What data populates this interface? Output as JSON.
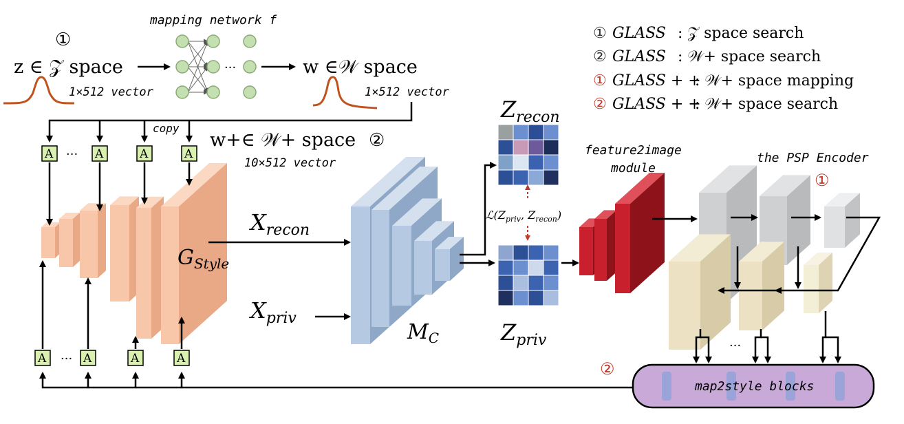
{
  "colors": {
    "generator": "#f8c6a8",
    "generator_side": "#e9a886",
    "encoder": "#b5c9e3",
    "encoder_side": "#8fa8c8",
    "red_module": "#c8202c",
    "psp_gray": "#cfd0d2",
    "psp_beige": "#ece2c3",
    "map2style": "#c9a9d8",
    "abox": "#d9f0b0",
    "gauss": "#c0521c",
    "legend_red": "#c0392b"
  },
  "top": {
    "mapping_label": "mapping network f",
    "z_badge": "①",
    "z_space": "z ∈ 𝒵 space",
    "z_vector": "1×512 vector",
    "w_space": "w ∈𝒲 space",
    "w_vector": "1×512 vector",
    "dots": "···"
  },
  "legend": [
    {
      "badge": "①",
      "method": "GLASS",
      "rest": ": 𝒵  space search",
      "red": false
    },
    {
      "badge": "②",
      "method": "GLASS",
      "rest": ": 𝒲+ space search",
      "red": false
    },
    {
      "badge": "①",
      "method": "GLASS + +",
      "rest": ": 𝒲+ space mapping",
      "red": true
    },
    {
      "badge": "②",
      "method": "GLASS + +",
      "rest": ": 𝒲+ space search",
      "red": true
    }
  ],
  "generator": {
    "copy": "copy",
    "wplus_space": "w+∈ 𝒲+ space",
    "wplus_badge": "②",
    "wplus_vector": "10×512 vector",
    "label_main": "G",
    "label_sub": "Style",
    "a_label": "A",
    "dots": "···"
  },
  "inputs": {
    "recon_main": "X",
    "recon_sub": "recon",
    "priv_main": "X",
    "priv_sub": "priv"
  },
  "classifier": {
    "main": "M",
    "sub": "C"
  },
  "latents": {
    "zrecon_main": "Z",
    "zrecon_sub": "recon",
    "zpriv_main": "Z",
    "zpriv_sub": "priv",
    "loss": "ℒ(Z",
    "loss_sub1": "priv",
    "loss_mid": ", Z",
    "loss_sub2": "recon",
    "loss_end": ")"
  },
  "feature2image": {
    "line1": "feature2image",
    "line2": "module"
  },
  "psp": {
    "label": "the PSP Encoder",
    "badge": "①",
    "dots": "···"
  },
  "map2style": {
    "label": "map2style blocks",
    "badge": "②"
  }
}
